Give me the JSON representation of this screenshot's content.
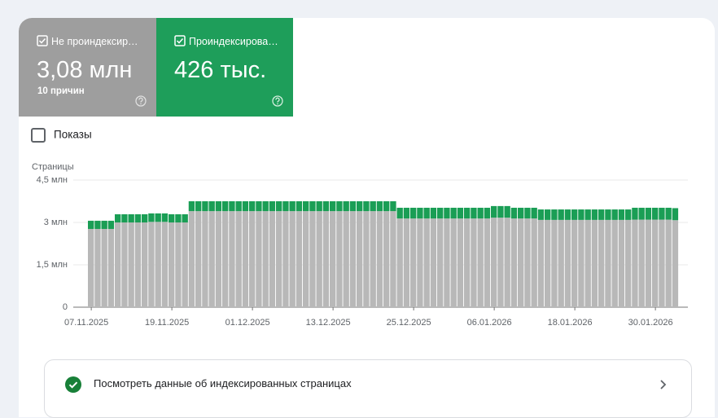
{
  "chart_data": {
    "type": "stacked_bar",
    "ylabel": "Страницы",
    "categories": [
      "07.11.2025",
      null,
      null,
      null,
      null,
      null,
      null,
      null,
      null,
      null,
      null,
      null,
      "19.11.2025",
      null,
      null,
      null,
      null,
      null,
      null,
      null,
      null,
      null,
      null,
      null,
      "01.12.2025",
      null,
      null,
      null,
      null,
      null,
      null,
      null,
      null,
      null,
      null,
      null,
      "13.12.2025",
      null,
      null,
      null,
      null,
      null,
      null,
      null,
      null,
      null,
      null,
      null,
      "25.12.2025",
      null,
      null,
      null,
      null,
      null,
      null,
      null,
      null,
      null,
      null,
      null,
      "06.01.2026",
      null,
      null,
      null,
      null,
      null,
      null,
      null,
      null,
      null,
      null,
      null,
      "18.01.2026",
      null,
      null,
      null,
      null,
      null,
      null,
      null,
      null,
      null,
      null,
      null,
      "30.01.2026",
      null,
      null,
      null
    ],
    "series": [
      {
        "name": "Не проиндексир…",
        "summary": "3,08 млн",
        "note": "10 причин",
        "color": "#b8b8b8",
        "tile_color": "#9e9e9e",
        "values": [
          2.77,
          2.77,
          2.77,
          2.77,
          3,
          3,
          3,
          3,
          3,
          3.02,
          3.02,
          3.02,
          3,
          3,
          3,
          3.4,
          3.4,
          3.4,
          3.4,
          3.4,
          3.4,
          3.4,
          3.4,
          3.4,
          3.4,
          3.4,
          3.4,
          3.4,
          3.4,
          3.4,
          3.4,
          3.4,
          3.4,
          3.4,
          3.4,
          3.4,
          3.4,
          3.4,
          3.4,
          3.4,
          3.4,
          3.4,
          3.4,
          3.4,
          3.4,
          3.4,
          3.14,
          3.14,
          3.14,
          3.14,
          3.14,
          3.14,
          3.14,
          3.14,
          3.14,
          3.14,
          3.14,
          3.14,
          3.14,
          3.14,
          3.17,
          3.17,
          3.17,
          3.14,
          3.14,
          3.14,
          3.14,
          3.09,
          3.09,
          3.09,
          3.09,
          3.09,
          3.09,
          3.09,
          3.09,
          3.09,
          3.09,
          3.09,
          3.09,
          3.09,
          3.09,
          3.1,
          3.1,
          3.1,
          3.1,
          3.1,
          3.1,
          3.08
        ]
      },
      {
        "name": "Проиндексирова…",
        "summary": "426 тыс.",
        "color": "#1a9e55",
        "tile_color": "#1e9e5a",
        "values": [
          0.29,
          0.29,
          0.29,
          0.29,
          0.29,
          0.29,
          0.29,
          0.29,
          0.29,
          0.3,
          0.3,
          0.3,
          0.29,
          0.29,
          0.29,
          0.35,
          0.35,
          0.35,
          0.35,
          0.35,
          0.35,
          0.35,
          0.35,
          0.35,
          0.35,
          0.35,
          0.35,
          0.35,
          0.35,
          0.35,
          0.35,
          0.35,
          0.35,
          0.35,
          0.35,
          0.35,
          0.35,
          0.35,
          0.35,
          0.35,
          0.35,
          0.35,
          0.35,
          0.35,
          0.35,
          0.35,
          0.38,
          0.38,
          0.38,
          0.38,
          0.38,
          0.38,
          0.38,
          0.38,
          0.38,
          0.38,
          0.38,
          0.38,
          0.38,
          0.38,
          0.41,
          0.41,
          0.41,
          0.38,
          0.38,
          0.38,
          0.38,
          0.37,
          0.37,
          0.37,
          0.37,
          0.37,
          0.37,
          0.37,
          0.37,
          0.37,
          0.37,
          0.37,
          0.37,
          0.37,
          0.37,
          0.42,
          0.42,
          0.42,
          0.42,
          0.42,
          0.42,
          0.426
        ]
      }
    ],
    "ylim": [
      0,
      4.5
    ],
    "yticks": [
      0,
      {
        "value": 1.5,
        "label": "1,5 млн"
      },
      {
        "value": 3,
        "label": "3 млн"
      },
      {
        "value": 4.5,
        "label": "4,5 млн"
      }
    ],
    "grid": true
  },
  "controls": {
    "impressions": "Показы"
  },
  "link": {
    "text": "Посмотреть данные об индексированных страницах"
  }
}
